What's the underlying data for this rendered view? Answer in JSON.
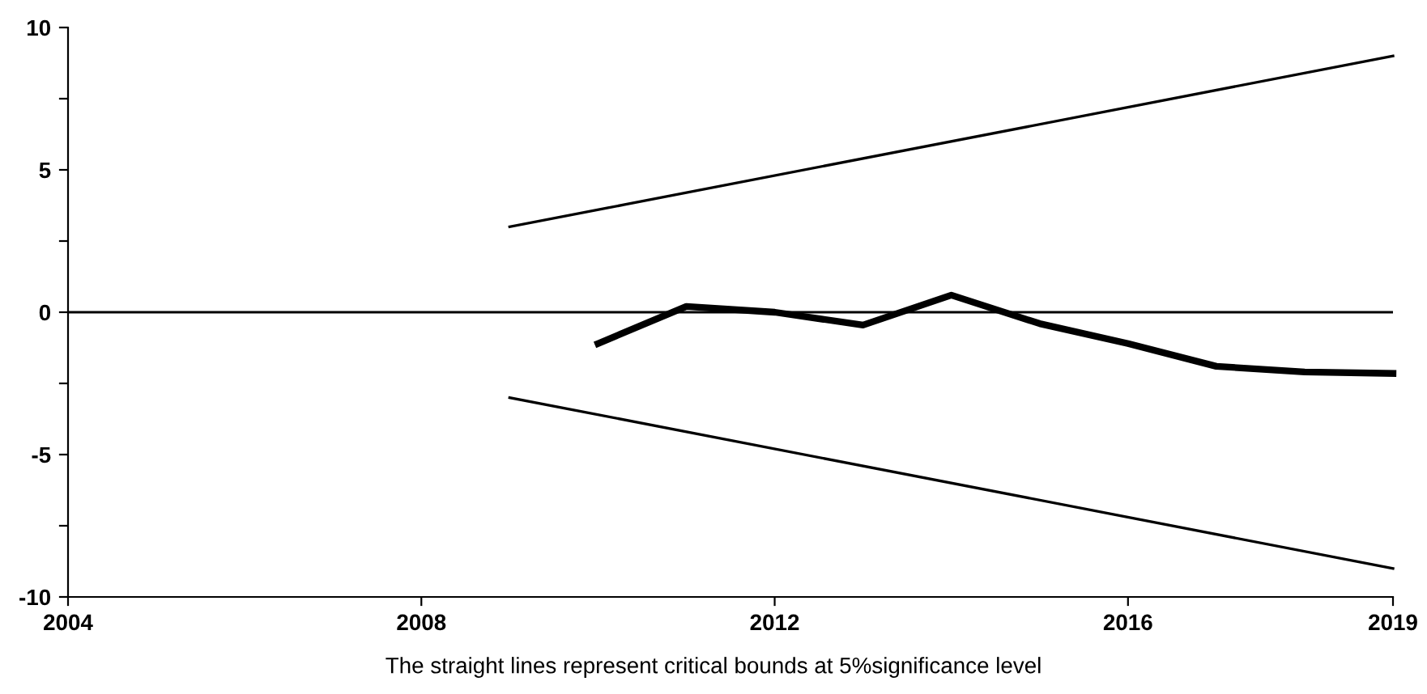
{
  "chart_data": {
    "type": "line",
    "x": [
      2009,
      2019
    ],
    "series": [
      {
        "x": [
          2010,
          2011,
          2012,
          2013,
          2014,
          2015,
          2016,
          2017,
          2018,
          2019
        ],
        "values": [
          -1.1,
          0.2,
          0,
          -0.45,
          0.6,
          -0.4,
          -1.1,
          -1.9,
          -2.1,
          -2.15
        ],
        "color": "#000000"
      },
      {
        "values": [
          3,
          9
        ],
        "color": "#000000"
      },
      {
        "values": [
          -3,
          -9
        ],
        "color": "#000000"
      }
    ],
    "xlim": [
      2004,
      2019
    ],
    "xticks": [
      2004,
      2008,
      2012,
      2016,
      2019
    ],
    "ylim": [
      -10,
      10
    ],
    "yticks": [
      -10,
      {
        "value": -7.5,
        "label": null
      },
      -5,
      {
        "value": -2.5,
        "label": null
      },
      0,
      {
        "value": 2.5,
        "label": null
      },
      5,
      {
        "value": 7.5,
        "label": null
      },
      10
    ],
    "ref_lines": [
      {
        "axis": "y",
        "value": 0,
        "color": "#000000"
      }
    ],
    "annotations": [
      "The straight lines represent critical bounds at 5%significance level"
    ],
    "grid": false,
    "legend": false,
    "marker": "none",
    "line_style": "solid"
  }
}
